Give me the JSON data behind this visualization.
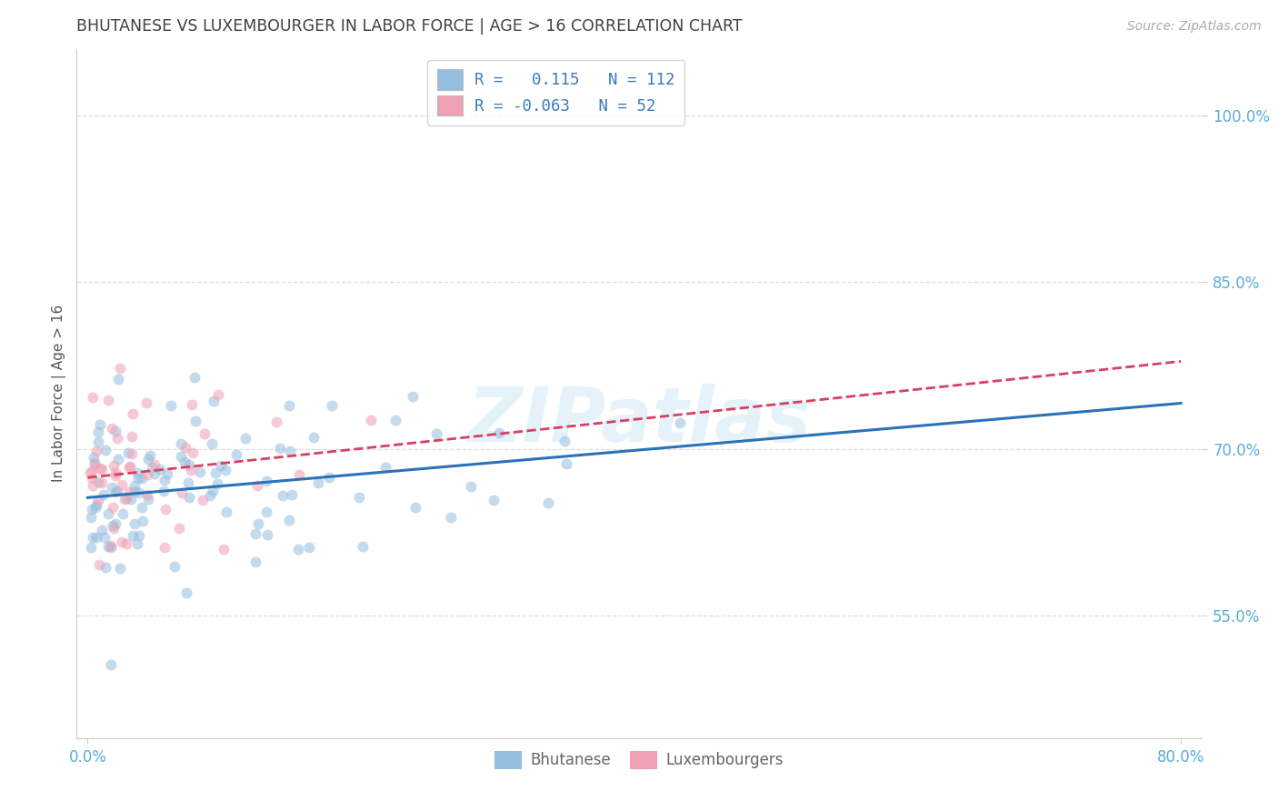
{
  "title": "BHUTANESE VS LUXEMBOURGER IN LABOR FORCE | AGE > 16 CORRELATION CHART",
  "source_text": "Source: ZipAtlas.com",
  "ylabel": "In Labor Force | Age > 16",
  "xlim": [
    -0.008,
    0.815
  ],
  "ylim": [
    0.44,
    1.06
  ],
  "ytick_vals": [
    0.55,
    0.7,
    0.85,
    1.0
  ],
  "ytick_labels": [
    "55.0%",
    "70.0%",
    "85.0%",
    "100.0%"
  ],
  "xtick_vals": [
    0.0,
    0.8
  ],
  "xtick_labels": [
    "0.0%",
    "80.0%"
  ],
  "watermark": "ZIPatlas",
  "legend1_line1": "R =   0.115   N = 112",
  "legend1_line2": "R = -0.063   N = 52",
  "legend2_labels": [
    "Bhutanese",
    "Luxembourgers"
  ],
  "blue_color": "#93bedd",
  "pink_color": "#f0a0b4",
  "blue_line_color": "#2b72b8",
  "pink_line_color": "#d84060",
  "grid_color": "#dedede",
  "bg_color": "#ffffff",
  "title_color": "#404040",
  "tick_color": "#5aabdc",
  "source_color": "#aaaaaa",
  "watermark_color": "#c8e4f4",
  "watermark_alpha": 0.45,
  "scatter_size": 75,
  "scatter_alpha": 0.55,
  "blue_R": 0.115,
  "blue_N": 112,
  "pink_R": -0.063,
  "pink_N": 52
}
